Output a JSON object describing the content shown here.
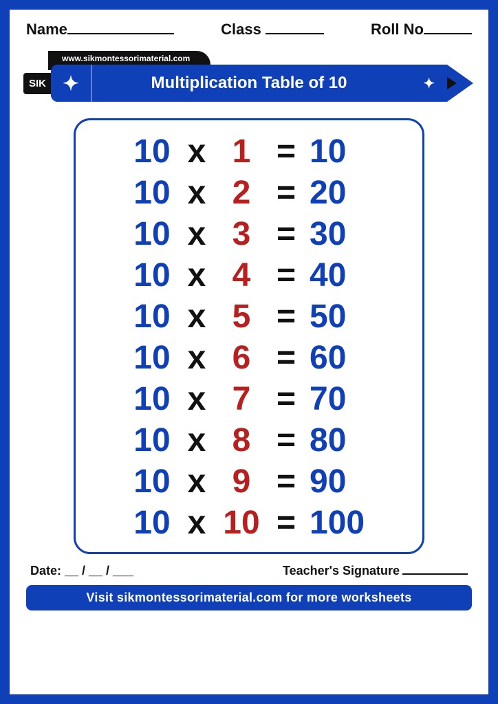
{
  "header": {
    "name_label": "Name",
    "class_label": "Class",
    "roll_label": "Roll No"
  },
  "brand": {
    "url": "www.sikmontessorimaterial.com",
    "logo_text": "SIK",
    "title": "Multiplication Table of 10"
  },
  "colors": {
    "primary": "#1040b8",
    "multiplier": "#b82020",
    "operator": "#111111",
    "background": "#ffffff"
  },
  "table": {
    "type": "multiplication-table",
    "base": 10,
    "rows": [
      {
        "base": "10",
        "op": "x",
        "mult": "1",
        "eq": "=",
        "res": "10"
      },
      {
        "base": "10",
        "op": "x",
        "mult": "2",
        "eq": "=",
        "res": "20"
      },
      {
        "base": "10",
        "op": "x",
        "mult": "3",
        "eq": "=",
        "res": "30"
      },
      {
        "base": "10",
        "op": "x",
        "mult": "4",
        "eq": "=",
        "res": "40"
      },
      {
        "base": "10",
        "op": "x",
        "mult": "5",
        "eq": "=",
        "res": "50"
      },
      {
        "base": "10",
        "op": "x",
        "mult": "6",
        "eq": "=",
        "res": "60"
      },
      {
        "base": "10",
        "op": "x",
        "mult": "7",
        "eq": "=",
        "res": "70"
      },
      {
        "base": "10",
        "op": "x",
        "mult": "8",
        "eq": "=",
        "res": "80"
      },
      {
        "base": "10",
        "op": "x",
        "mult": "9",
        "eq": "=",
        "res": "90"
      },
      {
        "base": "10",
        "op": "x",
        "mult": "10",
        "eq": "=",
        "res": "100"
      }
    ],
    "font_size": 48,
    "border_color": "#1040b8",
    "border_radius": 24
  },
  "footer": {
    "date_label": "Date: __ / __ / ___",
    "signature_label": "Teacher's Signature",
    "cta": "Visit sikmontessorimaterial.com for more worksheets"
  }
}
